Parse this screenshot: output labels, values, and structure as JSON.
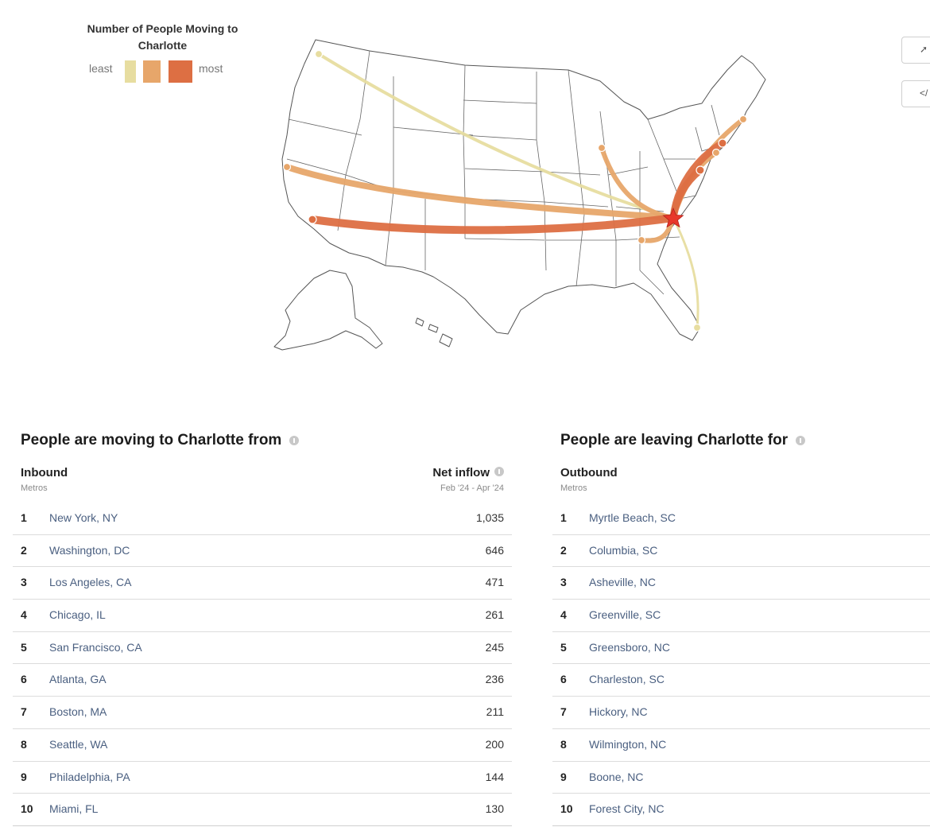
{
  "legend": {
    "title": "Number of People Moving to Charlotte",
    "least": "least",
    "most": "most",
    "colors": [
      "#e7dda0",
      "#e7a66a",
      "#dd6f43"
    ]
  },
  "map": {
    "destination": "Charlotte",
    "destination_color": "#e8372a",
    "flows": [
      {
        "origin": "New York, NY",
        "level": 3
      },
      {
        "origin": "Washington, DC",
        "level": 3
      },
      {
        "origin": "Los Angeles, CA",
        "level": 3
      },
      {
        "origin": "Chicago, IL",
        "level": 2
      },
      {
        "origin": "San Francisco, CA",
        "level": 2
      },
      {
        "origin": "Atlanta, GA",
        "level": 2
      },
      {
        "origin": "Boston, MA",
        "level": 2
      },
      {
        "origin": "Seattle, WA",
        "level": 1
      },
      {
        "origin": "Philadelphia, PA",
        "level": 2
      },
      {
        "origin": "Miami, FL",
        "level": 1
      }
    ]
  },
  "inbound": {
    "title": "People are moving to Charlotte from",
    "label": "Inbound",
    "sublabel": "Metros",
    "value_label": "Net inflow",
    "value_sublabel": "Feb '24 - Apr '24",
    "rows": [
      {
        "rank": "1",
        "metro": "New York, NY",
        "value": "1,035"
      },
      {
        "rank": "2",
        "metro": "Washington, DC",
        "value": "646"
      },
      {
        "rank": "3",
        "metro": "Los Angeles, CA",
        "value": "471"
      },
      {
        "rank": "4",
        "metro": "Chicago, IL",
        "value": "261"
      },
      {
        "rank": "5",
        "metro": "San Francisco, CA",
        "value": "245"
      },
      {
        "rank": "6",
        "metro": "Atlanta, GA",
        "value": "236"
      },
      {
        "rank": "7",
        "metro": "Boston, MA",
        "value": "211"
      },
      {
        "rank": "8",
        "metro": "Seattle, WA",
        "value": "200"
      },
      {
        "rank": "9",
        "metro": "Philadelphia, PA",
        "value": "144"
      },
      {
        "rank": "10",
        "metro": "Miami, FL",
        "value": "130"
      }
    ]
  },
  "outbound": {
    "title": "People are leaving Charlotte for",
    "label": "Outbound",
    "sublabel": "Metros",
    "rows": [
      {
        "rank": "1",
        "metro": "Myrtle Beach, SC"
      },
      {
        "rank": "2",
        "metro": "Columbia, SC"
      },
      {
        "rank": "3",
        "metro": "Asheville, NC"
      },
      {
        "rank": "4",
        "metro": "Greenville, SC"
      },
      {
        "rank": "5",
        "metro": "Greensboro, NC"
      },
      {
        "rank": "6",
        "metro": "Charleston, SC"
      },
      {
        "rank": "7",
        "metro": "Hickory, NC"
      },
      {
        "rank": "8",
        "metro": "Wilmington, NC"
      },
      {
        "rank": "9",
        "metro": "Boone, NC"
      },
      {
        "rank": "10",
        "metro": "Forest City, NC"
      }
    ]
  },
  "side_buttons": [
    {
      "icon": "share-icon"
    },
    {
      "icon": "embed-icon"
    }
  ]
}
